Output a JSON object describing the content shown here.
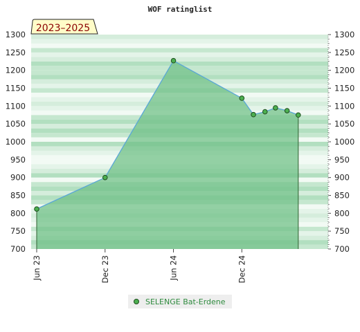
{
  "chart_data": {
    "type": "area",
    "title": "WOF ratinglist",
    "badge": "2023–2025",
    "ylim": [
      700,
      1300
    ],
    "y_ticks": [
      700,
      750,
      800,
      850,
      900,
      950,
      1000,
      1050,
      1100,
      1150,
      1200,
      1250,
      1300
    ],
    "x_ticks": [
      "Jun 23",
      "Dec 23",
      "Jun 24",
      "Dec 24"
    ],
    "x_range": [
      "2023-06-01",
      "2025-07-20"
    ],
    "y_axis_both_sides": true,
    "grid": "horizontal bands",
    "legend_position": "bottom-center",
    "series": [
      {
        "name": "SELENGE Bat-Erdene",
        "x": [
          "2023-06-01",
          "2023-12-01",
          "2024-06-01",
          "2024-12-01",
          "2025-01-01",
          "2025-02-01",
          "2025-03-01",
          "2025-04-01",
          "2025-05-01"
        ],
        "values": [
          812,
          900,
          1227,
          1122,
          1076,
          1084,
          1095,
          1087,
          1075
        ]
      }
    ],
    "colors": {
      "area_fill": "#6dbf85",
      "line": "#5aa7d6",
      "marker_fill": "#4caf50",
      "marker_stroke": "#1e4d1e",
      "band_dark": "#a6dbb6",
      "band_light": "#e6f5ea",
      "badge_bg": "#fffcc8",
      "legend_bg": "#eeeeee"
    }
  }
}
